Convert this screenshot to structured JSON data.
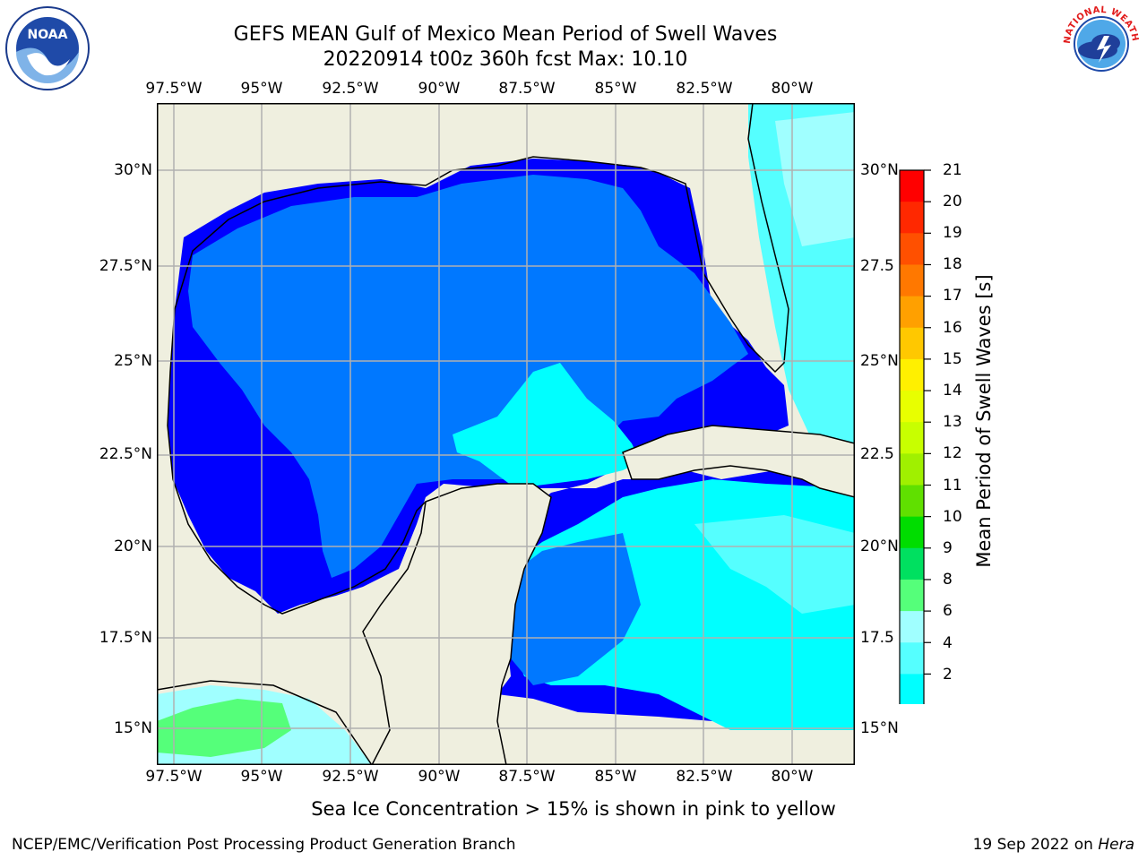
{
  "title": {
    "line1": "GEFS MEAN Gulf of Mexico Mean Period of Swell Waves",
    "line2": "20220914 t00z 360h fcst   Max: 10.10"
  },
  "logos": {
    "left": {
      "icon": "noaa-logo",
      "text": "NOAA"
    },
    "right": {
      "icon": "nws-logo",
      "text": "NATIONAL WEATHER SERVICE"
    }
  },
  "map": {
    "lon_labels": [
      "97.5°W",
      "95°W",
      "92.5°W",
      "90°W",
      "87.5°W",
      "85°W",
      "82.5°W",
      "80°W"
    ],
    "lat_labels_left": [
      "30°N",
      "27.5°N",
      "25°N",
      "22.5°N",
      "20°N",
      "17.5°N",
      "15°N"
    ],
    "lat_labels_right": [
      "30°N",
      "27.5",
      "25°N",
      "22.5",
      "20°N",
      "17.5",
      "15°N"
    ],
    "land_color": "#efefdf",
    "grid_color": "#b0b0b0"
  },
  "colorbar": {
    "label": "Mean Period of Swell Waves [s]",
    "ticks": [
      "21",
      "20",
      "19",
      "18",
      "17",
      "16",
      "15",
      "14",
      "13",
      "12",
      "11",
      "10",
      "9",
      "8",
      "6",
      "4",
      "2"
    ],
    "colors": [
      "#ff0000",
      "#ff2800",
      "#ff5000",
      "#ff7800",
      "#ffa000",
      "#ffc800",
      "#fff000",
      "#e8ff00",
      "#c8ff00",
      "#a0f000",
      "#60e000",
      "#00dd00",
      "#00e060",
      "#55ff7a",
      "#a0ffff",
      "#55ffff",
      "#00ffff",
      "#0078ff",
      "#0000ff"
    ]
  },
  "note": "Sea Ice Concentration > 15% is shown in pink to yellow",
  "footer": {
    "left": "NCEP/EMC/Verification Post Processing Product Generation Branch",
    "right_prefix": "19 Sep 2022 on ",
    "right_host": "Hera"
  }
}
